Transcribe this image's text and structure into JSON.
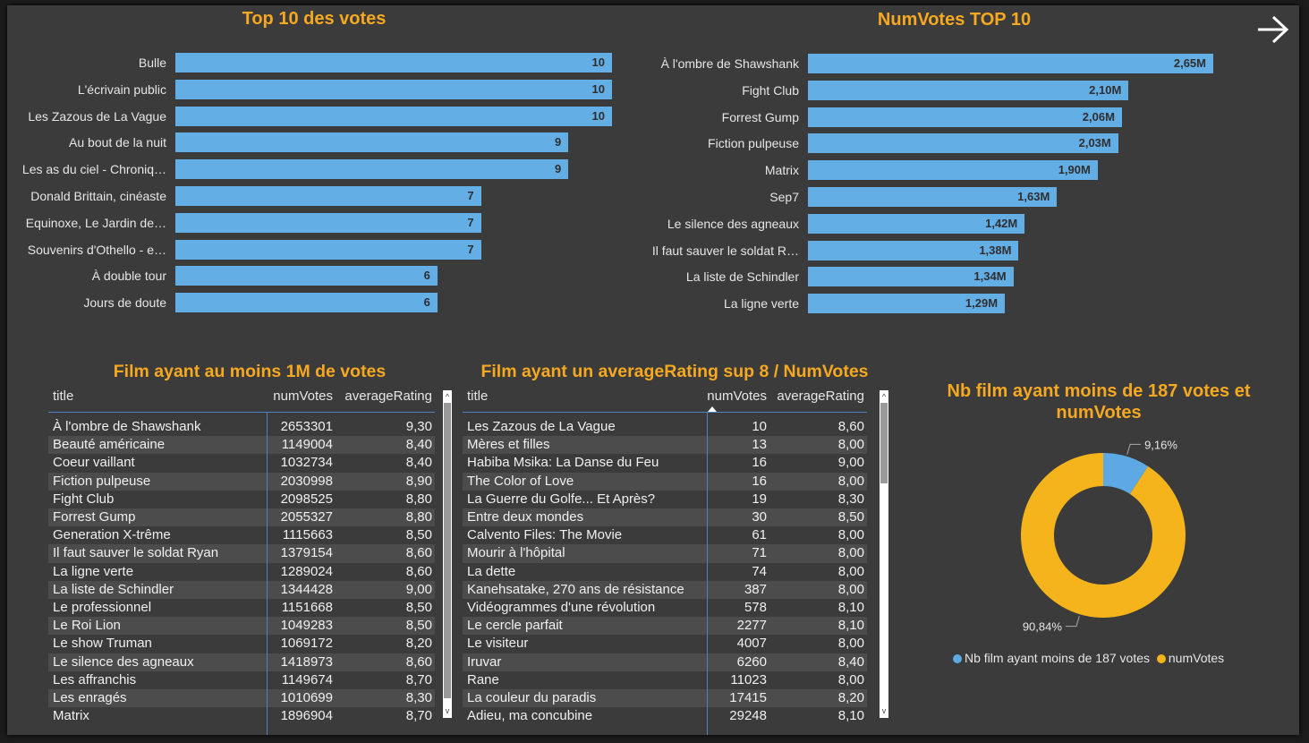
{
  "nav": {
    "next_icon": "arrow-right-icon"
  },
  "chart_data": [
    {
      "type": "bar",
      "orientation": "horizontal",
      "title": "Top 10 des votes",
      "categories": [
        "Bulle",
        "L'écrivain public",
        "Les Zazous de La Vague",
        "Au bout de la nuit",
        "Les as du ciel - Chroniq…",
        "Donald Brittain, cinéaste",
        "Equinoxe, Le Jardin de…",
        "Souvenirs d'Othello - e…",
        "À double tour",
        "Jours de doute"
      ],
      "values": [
        10,
        10,
        10,
        9,
        9,
        7,
        7,
        7,
        6,
        6
      ],
      "value_labels": [
        "10",
        "10",
        "10",
        "9",
        "9",
        "7",
        "7",
        "7",
        "6",
        "6"
      ],
      "xlim": [
        0,
        10
      ],
      "color": "#64aee6"
    },
    {
      "type": "bar",
      "orientation": "horizontal",
      "title": "NumVotes TOP 10",
      "categories": [
        "À l'ombre de Shawshank",
        "Fight Club",
        "Forrest Gump",
        "Fiction pulpeuse",
        "Matrix",
        "Sep7",
        "Le silence des agneaux",
        "Il faut sauver le soldat R…",
        "La liste de Schindler",
        "La ligne verte"
      ],
      "values": [
        2653301,
        2098525,
        2055327,
        2030998,
        1896904,
        1630000,
        1418973,
        1379154,
        1344428,
        1289024
      ],
      "value_labels": [
        "2,65M",
        "2,10M",
        "2,06M",
        "2,03M",
        "1,90M",
        "1,63M",
        "1,42M",
        "1,38M",
        "1,34M",
        "1,29M"
      ],
      "xlim": [
        0,
        2653301
      ],
      "color": "#64aee6"
    },
    {
      "type": "table",
      "title": "Film ayant au moins 1M de votes",
      "columns": [
        "title",
        "numVotes",
        "averageRating"
      ],
      "rows": [
        [
          "À l'ombre de Shawshank",
          "2653301",
          "9,30"
        ],
        [
          "Beauté américaine",
          "1149004",
          "8,40"
        ],
        [
          "Coeur vaillant",
          "1032734",
          "8,40"
        ],
        [
          "Fiction pulpeuse",
          "2030998",
          "8,90"
        ],
        [
          "Fight Club",
          "2098525",
          "8,80"
        ],
        [
          "Forrest Gump",
          "2055327",
          "8,80"
        ],
        [
          "Generation X-trême",
          "1115663",
          "8,50"
        ],
        [
          "Il faut sauver le soldat Ryan",
          "1379154",
          "8,60"
        ],
        [
          "La ligne verte",
          "1289024",
          "8,60"
        ],
        [
          "La liste de Schindler",
          "1344428",
          "9,00"
        ],
        [
          "Le professionnel",
          "1151668",
          "8,50"
        ],
        [
          "Le Roi Lion",
          "1049283",
          "8,50"
        ],
        [
          "Le show Truman",
          "1069172",
          "8,20"
        ],
        [
          "Le silence des agneaux",
          "1418973",
          "8,60"
        ],
        [
          "Les affranchis",
          "1149674",
          "8,70"
        ],
        [
          "Les enragés",
          "1010699",
          "8,30"
        ],
        [
          "Matrix",
          "1896904",
          "8,70"
        ]
      ]
    },
    {
      "type": "table",
      "title": "Film ayant un averageRating sup 8 / NumVotes",
      "columns": [
        "title",
        "numVotes",
        "averageRating"
      ],
      "sorted_column": "numVotes",
      "rows": [
        [
          "Les Zazous de La Vague",
          "10",
          "8,60"
        ],
        [
          "Mères et filles",
          "13",
          "8,00"
        ],
        [
          "Habiba Msika: La Danse du Feu",
          "16",
          "9,00"
        ],
        [
          "The Color of Love",
          "16",
          "8,00"
        ],
        [
          "La Guerre du Golfe... Et Après?",
          "19",
          "8,30"
        ],
        [
          "Entre deux mondes",
          "30",
          "8,50"
        ],
        [
          "Calvento Files: The Movie",
          "61",
          "8,00"
        ],
        [
          "Mourir à l'hôpital",
          "71",
          "8,00"
        ],
        [
          "La dette",
          "74",
          "8,00"
        ],
        [
          "Kanehsatake, 270 ans de résistance",
          "387",
          "8,00"
        ],
        [
          "Vidéogrammes d'une révolution",
          "578",
          "8,10"
        ],
        [
          "Le cercle parfait",
          "2277",
          "8,10"
        ],
        [
          "Le visiteur",
          "4007",
          "8,00"
        ],
        [
          "Iruvar",
          "6260",
          "8,40"
        ],
        [
          "Rane",
          "11023",
          "8,00"
        ],
        [
          "La couleur du paradis",
          "17415",
          "8,20"
        ],
        [
          "Adieu, ma concubine",
          "29248",
          "8,10"
        ]
      ]
    },
    {
      "type": "pie",
      "donut": true,
      "title": "Nb film ayant moins de 187 votes et numVotes",
      "slices": [
        {
          "name": "Nb film ayant moins de  187 votes",
          "value": 9.16,
          "label": "9,16%",
          "color": "#5da9e4"
        },
        {
          "name": "numVotes",
          "value": 90.84,
          "label": "90,84%",
          "color": "#f5b41b"
        }
      ],
      "legend_position": "bottom"
    }
  ]
}
